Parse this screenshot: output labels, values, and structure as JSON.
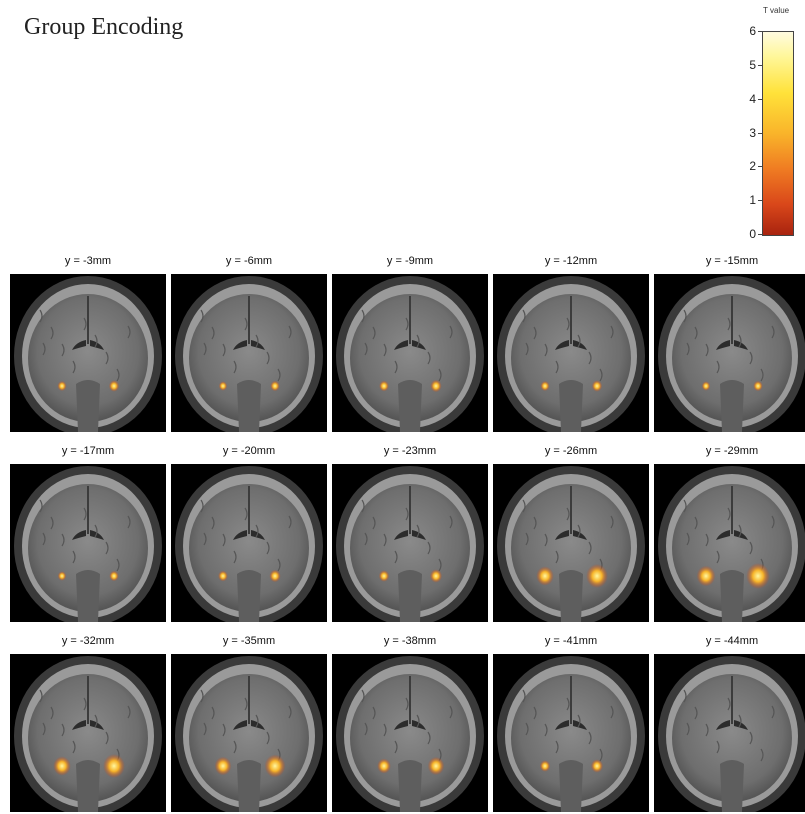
{
  "figure": {
    "title": "Group Encoding",
    "colorbar": {
      "label": "T value",
      "ticks": [
        "6",
        "5",
        "4",
        "3",
        "2",
        "1",
        "0"
      ],
      "colormap": [
        "#a8230f",
        "#d9471a",
        "#ef7a22",
        "#f9b42a",
        "#ffe23a",
        "#fff79a",
        "#fffbe0"
      ]
    },
    "slices": [
      {
        "label": "y = -3mm",
        "intensity": 0.25
      },
      {
        "label": "y = -6mm",
        "intensity": 0.2
      },
      {
        "label": "y = -9mm",
        "intensity": 0.3
      },
      {
        "label": "y = -12mm",
        "intensity": 0.25
      },
      {
        "label": "y = -15mm",
        "intensity": 0.2
      },
      {
        "label": "y = -17mm",
        "intensity": 0.2
      },
      {
        "label": "y = -20mm",
        "intensity": 0.3
      },
      {
        "label": "y = -23mm",
        "intensity": 0.35
      },
      {
        "label": "y = -26mm",
        "intensity": 0.9
      },
      {
        "label": "y = -29mm",
        "intensity": 1.0
      },
      {
        "label": "y = -32mm",
        "intensity": 0.9
      },
      {
        "label": "y = -35mm",
        "intensity": 0.85
      },
      {
        "label": "y = -38mm",
        "intensity": 0.6
      },
      {
        "label": "y = -41mm",
        "intensity": 0.35
      },
      {
        "label": "y = -44mm",
        "intensity": 0.0
      }
    ]
  }
}
